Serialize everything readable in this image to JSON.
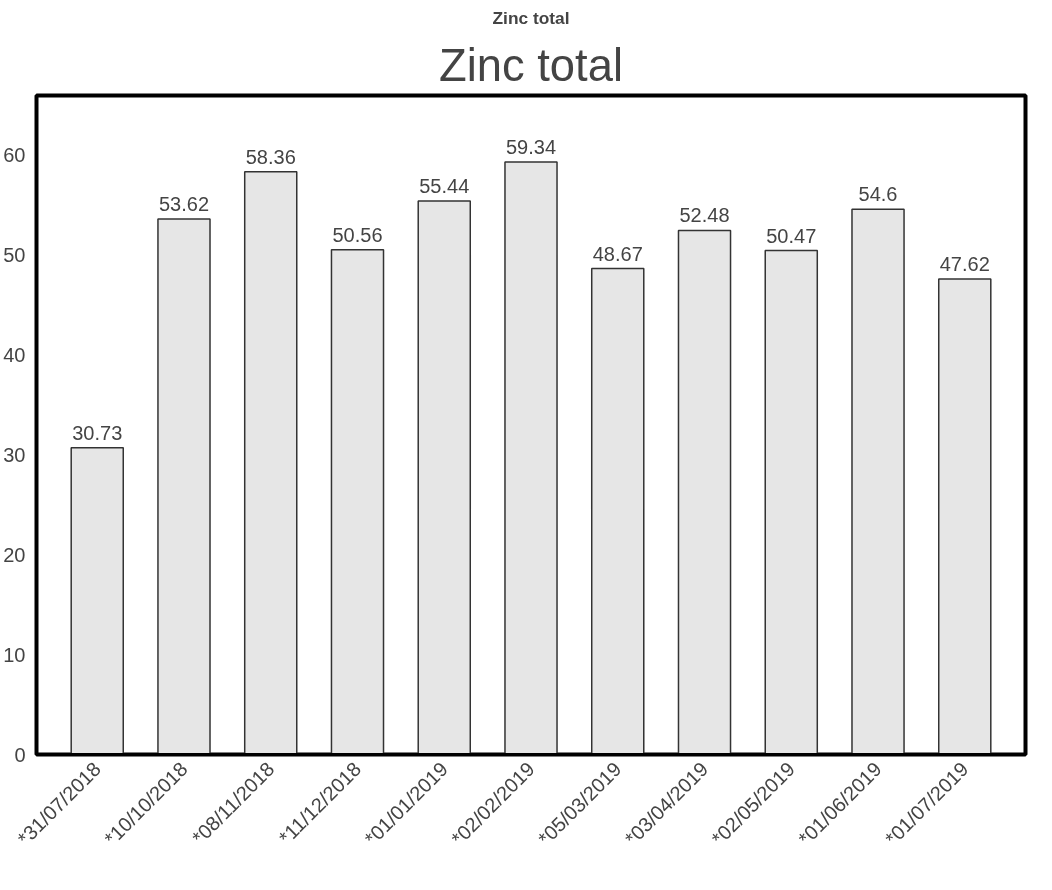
{
  "chart_data": {
    "type": "bar",
    "title": "Zinc total",
    "subtitle": "Zinc total",
    "categories": [
      "*31/07/2018",
      "*10/10/2018",
      "*08/11/2018",
      "*11/12/2018",
      "*01/01/2019",
      "*02/02/2019",
      "*05/03/2019",
      "*03/04/2019",
      "*02/05/2019",
      "*01/06/2019",
      "*01/07/2019"
    ],
    "values": [
      30.73,
      53.62,
      58.36,
      50.56,
      55.44,
      59.34,
      48.67,
      52.48,
      50.47,
      54.6,
      47.62
    ],
    "color": "#e6e6e6",
    "ylim": [
      0,
      66
    ],
    "yticks": [
      0,
      10,
      20,
      30,
      40,
      50,
      60
    ],
    "data_labels": true,
    "grid": false
  }
}
